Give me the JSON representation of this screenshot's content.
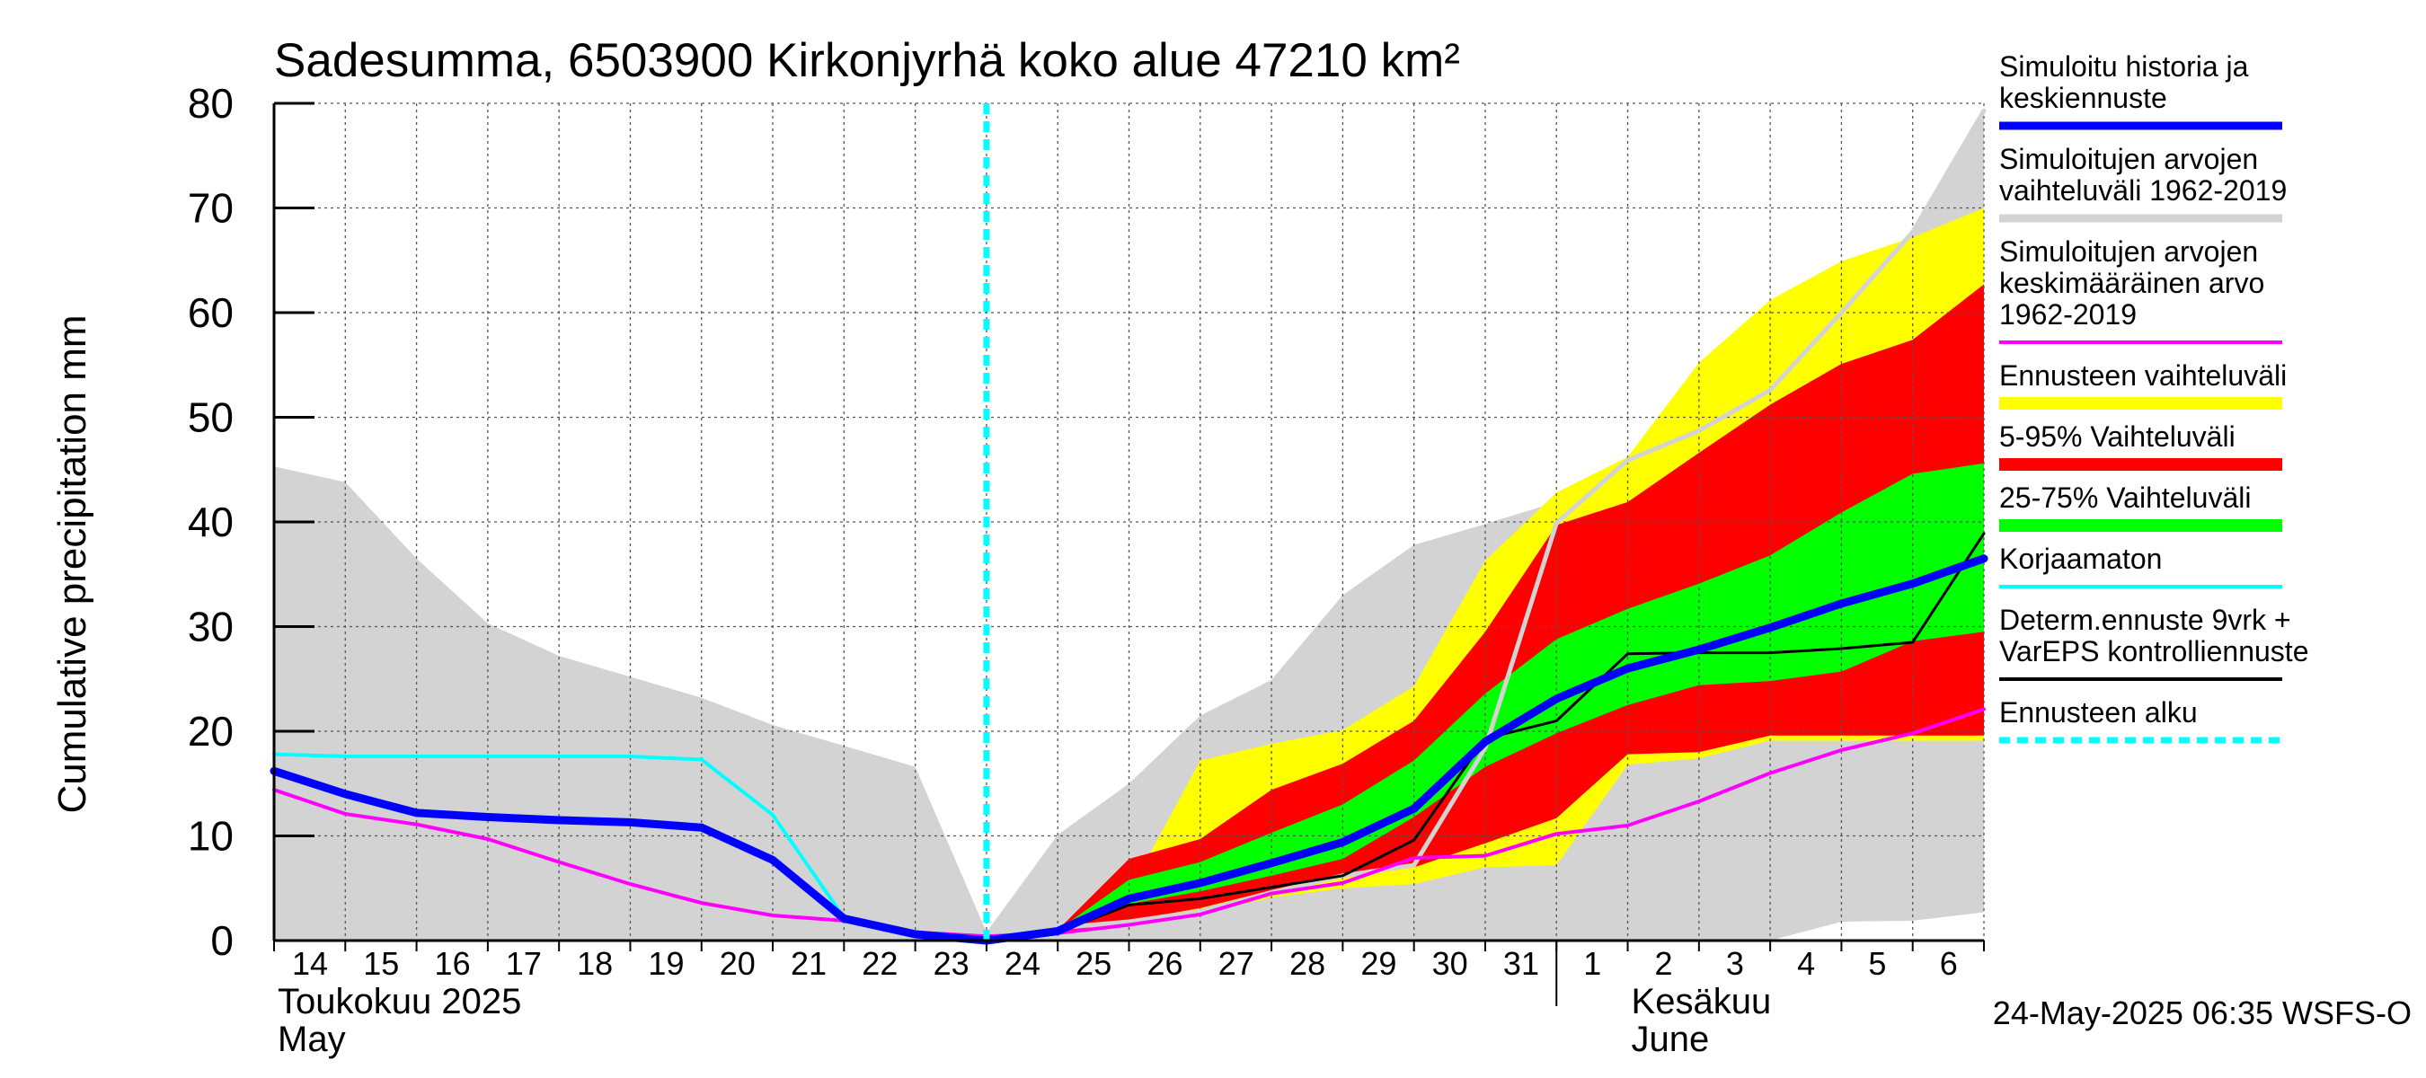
{
  "chart_data": {
    "type": "area",
    "title": "Sadesumma, 6503900 Kirkonjyrhä koko alue 47210 km²",
    "ylabel": "Cumulative precipitation   mm",
    "ylim": [
      0,
      80
    ],
    "y_ticks": [
      0,
      10,
      20,
      30,
      40,
      50,
      60,
      70,
      80
    ],
    "xlim": [
      0,
      24
    ],
    "x_tick_labels": [
      "14",
      "15",
      "16",
      "17",
      "18",
      "19",
      "20",
      "21",
      "22",
      "23",
      "24",
      "25",
      "26",
      "27",
      "28",
      "29",
      "30",
      "31",
      "1",
      "2",
      "3",
      "4",
      "5",
      "6"
    ],
    "month_labels": [
      {
        "x": 0,
        "line1": "Toukokuu  2025",
        "line2": "May"
      },
      {
        "x": 19,
        "line1": "Kesäkuu",
        "line2": "June"
      }
    ],
    "month_divider_x": 18,
    "forecast_start_x": 10,
    "timestamp": "24-May-2025 06:35 WSFS-O",
    "series": [
      {
        "name": "hist_range",
        "kind": "band",
        "color": "#d3d3d3",
        "x": [
          0,
          1,
          2,
          3,
          4,
          5,
          6,
          7,
          8,
          9,
          10,
          11,
          12,
          13,
          14,
          15,
          16,
          17,
          18,
          19,
          20,
          21,
          22,
          23,
          24
        ],
        "upper": [
          45.3,
          43.8,
          36.5,
          30.3,
          27.2,
          25.2,
          23.2,
          20.6,
          18.6,
          16.6,
          0.8,
          10.1,
          15.0,
          21.5,
          24.9,
          33.0,
          37.8,
          39.8,
          41.9,
          45.9,
          48.7,
          52.6,
          60.0,
          67.7,
          79.3
        ],
        "lower": [
          0,
          0,
          0,
          0,
          0,
          0,
          0,
          0,
          0,
          0,
          0,
          0,
          0,
          0,
          0,
          0,
          0,
          0,
          0,
          0,
          0,
          0,
          1.8,
          1.9,
          2.7
        ]
      },
      {
        "name": "ens_range",
        "kind": "band",
        "color": "#ffff00",
        "x": [
          10,
          11,
          12,
          13,
          14,
          15,
          16,
          17,
          18,
          19,
          20,
          21,
          22,
          23,
          24
        ],
        "upper": [
          0.3,
          1.0,
          4.6,
          17.2,
          18.8,
          20.1,
          24.3,
          36.3,
          42.8,
          46.2,
          55.2,
          61.2,
          64.9,
          67.2,
          70.0
        ],
        "lower": [
          0.3,
          0.7,
          1.5,
          2.6,
          4.1,
          5.0,
          5.4,
          7.0,
          7.2,
          16.8,
          17.4,
          19.1,
          19.1,
          19.1,
          19.1
        ]
      },
      {
        "name": "p5_95",
        "kind": "band",
        "color": "#ff0000",
        "x": [
          10,
          11,
          12,
          13,
          14,
          15,
          16,
          17,
          18,
          19,
          20,
          21,
          22,
          23,
          24
        ],
        "upper": [
          0.3,
          1.0,
          7.8,
          9.7,
          14.4,
          16.9,
          21.0,
          29.5,
          39.7,
          41.9,
          46.6,
          51.2,
          55.1,
          57.4,
          62.7
        ],
        "lower": [
          0.3,
          0.7,
          1.9,
          3.1,
          4.8,
          6.0,
          7.0,
          9.3,
          11.7,
          17.8,
          18.0,
          19.6,
          19.6,
          19.6,
          19.6
        ]
      },
      {
        "name": "p25_75",
        "kind": "band",
        "color": "#00ff00",
        "x": [
          10,
          11,
          12,
          13,
          14,
          15,
          16,
          17,
          18,
          19,
          20,
          21,
          22,
          23,
          24
        ],
        "upper": [
          0.3,
          1.0,
          5.8,
          7.5,
          10.3,
          13.0,
          17.2,
          23.6,
          28.8,
          31.7,
          34.1,
          36.8,
          40.9,
          44.6,
          45.6
        ],
        "lower": [
          0.3,
          0.8,
          3.5,
          4.7,
          6.2,
          7.8,
          11.8,
          16.6,
          19.8,
          22.5,
          24.4,
          24.8,
          25.7,
          28.6,
          29.5
        ]
      },
      {
        "name": "hist_max_line",
        "kind": "line",
        "color": "#d3d3d3",
        "width": 5,
        "x": [
          10,
          11,
          12,
          13,
          14,
          15,
          16,
          17,
          18,
          19,
          20,
          21,
          22,
          23,
          24
        ],
        "y": [
          0.8,
          1.2,
          1.8,
          2.8,
          4.6,
          6.2,
          7.2,
          18.4,
          39.9,
          45.9,
          48.7,
          52.6,
          60.0,
          67.7,
          79.3
        ]
      },
      {
        "name": "mean_1962_2019",
        "kind": "line",
        "color": "#ff00ff",
        "width": 4,
        "x": [
          0,
          1,
          2,
          3,
          4,
          5,
          6,
          7,
          8,
          9,
          10,
          11,
          12,
          13,
          14,
          15,
          16,
          17,
          18,
          19,
          20,
          21,
          22,
          23,
          24
        ],
        "y": [
          14.4,
          12.1,
          11.1,
          9.7,
          7.5,
          5.4,
          3.6,
          2.4,
          1.9,
          0.8,
          0.4,
          0.7,
          1.5,
          2.5,
          4.5,
          5.5,
          7.9,
          8.1,
          10.2,
          11.0,
          13.3,
          16.0,
          18.2,
          19.8,
          22.1
        ]
      },
      {
        "name": "korjaamaton",
        "kind": "line",
        "color": "#00ffff",
        "width": 4,
        "x": [
          0,
          1,
          2,
          3,
          4,
          5,
          6,
          7,
          8
        ],
        "y": [
          17.8,
          17.6,
          17.6,
          17.6,
          17.6,
          17.6,
          17.3,
          12.0,
          2.2
        ]
      },
      {
        "name": "determ_ctrl",
        "kind": "line",
        "color": "#000000",
        "width": 3,
        "x": [
          10,
          11,
          12,
          13,
          14,
          15,
          16,
          17,
          18,
          19,
          20,
          21,
          22,
          23,
          24
        ],
        "y": [
          0.3,
          0.8,
          3.4,
          4.0,
          5.1,
          6.2,
          9.6,
          19.3,
          21.0,
          27.4,
          27.5,
          27.5,
          27.9,
          28.5,
          38.9
        ]
      },
      {
        "name": "sim_history_median",
        "kind": "line",
        "color": "#0000ff",
        "width": 9,
        "x": [
          0,
          1,
          2,
          3,
          4,
          5,
          6,
          7,
          8,
          9,
          10,
          11,
          12,
          13,
          14,
          15,
          16,
          17,
          18,
          19,
          20,
          21,
          22,
          23,
          24
        ],
        "y": [
          16.2,
          14.0,
          12.2,
          11.8,
          11.5,
          11.3,
          10.8,
          7.7,
          2.1,
          0.6,
          0.0,
          0.9,
          4.0,
          5.5,
          7.4,
          9.4,
          12.6,
          19.0,
          23.1,
          26.0,
          27.8,
          29.9,
          32.2,
          34.1,
          36.5
        ]
      }
    ]
  },
  "legend": [
    {
      "key": "sim_history_median",
      "lines": [
        "Simuloitu historia ja",
        "keskiennuste"
      ],
      "color": "#0000ff",
      "style": "thick"
    },
    {
      "key": "hist_range",
      "lines": [
        "Simuloitujen arvojen",
        "vaihteluväli 1962-2019"
      ],
      "color": "#d3d3d3",
      "style": "thick"
    },
    {
      "key": "mean_1962_2019",
      "lines": [
        "Simuloitujen arvojen",
        "keskimääräinen arvo",
        "   1962-2019"
      ],
      "color": "#ff00ff",
      "style": "thin"
    },
    {
      "key": "ens_range",
      "lines": [
        "Ennusteen vaihteluväli"
      ],
      "color": "#ffff00",
      "style": "box"
    },
    {
      "key": "p5_95",
      "lines": [
        "5-95% Vaihteluväli"
      ],
      "color": "#ff0000",
      "style": "box"
    },
    {
      "key": "p25_75",
      "lines": [
        "25-75% Vaihteluväli"
      ],
      "color": "#00ff00",
      "style": "box"
    },
    {
      "key": "korjaamaton",
      "lines": [
        "Korjaamaton"
      ],
      "color": "#00ffff",
      "style": "thin"
    },
    {
      "key": "determ_ctrl",
      "lines": [
        "Determ.ennuste 9vrk +",
        "VarEPS kontrolliennuste"
      ],
      "color": "#000000",
      "style": "thin"
    },
    {
      "key": "forecast_start",
      "lines": [
        "Ennusteen alku"
      ],
      "color": "#00ffff",
      "style": "dashed"
    }
  ]
}
